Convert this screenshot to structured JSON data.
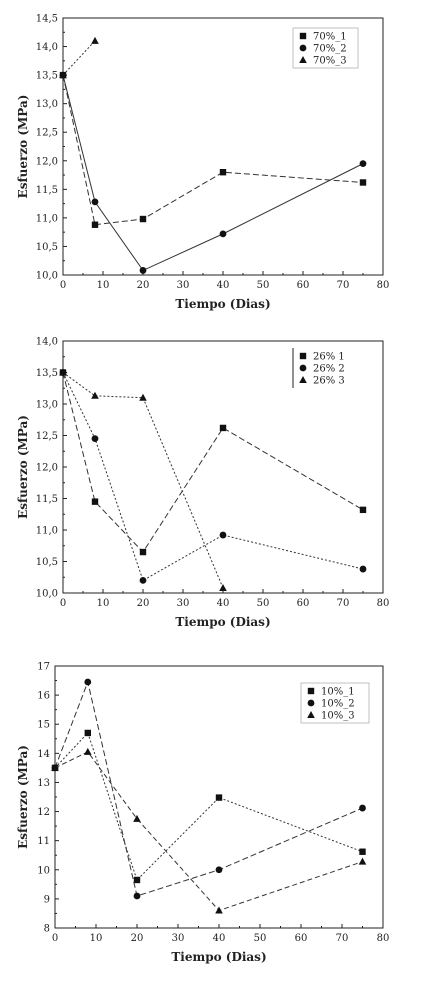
{
  "chart_data": [
    {
      "type": "line",
      "xlabel": "Tiempo (Dias)",
      "ylabel": "Esfuerzo (MPa)",
      "xlim": [
        0,
        80
      ],
      "ylim": [
        10.0,
        14.5
      ],
      "xticks": [
        "0",
        "10",
        "20",
        "30",
        "40",
        "50",
        "60",
        "70",
        "80"
      ],
      "yticks": [
        "10,0",
        "10,5",
        "11,0",
        "11,5",
        "12,0",
        "12,5",
        "13,0",
        "13,5",
        "14,0",
        "14,5"
      ],
      "legend_position": "top-right",
      "series": [
        {
          "name": "70%_1",
          "marker": "square",
          "dash": "6,3",
          "x": [
            0,
            8,
            20,
            40,
            75
          ],
          "y": [
            13.5,
            10.88,
            10.98,
            11.8,
            11.62
          ]
        },
        {
          "name": "70%_2",
          "marker": "circle",
          "dash": "",
          "x": [
            0,
            8,
            20,
            40,
            75
          ],
          "y": [
            13.5,
            11.28,
            10.08,
            10.72,
            11.95
          ]
        },
        {
          "name": "70%_3",
          "marker": "triangle",
          "dash": "2,2",
          "x": [
            0,
            8
          ],
          "y": [
            13.5,
            14.1
          ]
        }
      ]
    },
    {
      "type": "line",
      "xlabel": "Tiempo (Dias)",
      "ylabel": "Esfuerzo (MPa)",
      "xlim": [
        0,
        80
      ],
      "ylim": [
        10.0,
        14.0
      ],
      "xticks": [
        "0",
        "10",
        "20",
        "30",
        "40",
        "50",
        "60",
        "70",
        "80"
      ],
      "yticks": [
        "10,0",
        "10,5",
        "11,0",
        "11,5",
        "12,0",
        "12,5",
        "13,0",
        "13,5",
        "14,0"
      ],
      "legend_position": "top-right",
      "series": [
        {
          "name": "26% 1",
          "marker": "square",
          "dash": "6,3",
          "x": [
            0,
            8,
            20,
            40,
            75
          ],
          "y": [
            13.5,
            11.45,
            10.65,
            12.62,
            11.32
          ]
        },
        {
          "name": "26% 2",
          "marker": "circle",
          "dash": "2,2",
          "x": [
            0,
            8,
            20,
            40,
            75
          ],
          "y": [
            13.5,
            12.45,
            10.2,
            10.92,
            10.38
          ]
        },
        {
          "name": "26% 3",
          "marker": "triangle",
          "dash": "2,2",
          "x": [
            0,
            8,
            20,
            40
          ],
          "y": [
            13.5,
            13.13,
            13.1,
            10.08
          ]
        }
      ]
    },
    {
      "type": "line",
      "xlabel": "Tiempo (Dias)",
      "ylabel": "Esfuerzo (MPa)",
      "xlim": [
        0,
        80
      ],
      "ylim": [
        8,
        17
      ],
      "xticks": [
        "0",
        "10",
        "20",
        "30",
        "40",
        "50",
        "60",
        "70",
        "80"
      ],
      "yticks": [
        "8",
        "9",
        "10",
        "11",
        "12",
        "13",
        "14",
        "15",
        "16",
        "17"
      ],
      "legend_position": "top-right",
      "series": [
        {
          "name": "10%_1",
          "marker": "square",
          "dash": "2,2",
          "x": [
            0,
            8,
            20,
            40,
            75
          ],
          "y": [
            13.5,
            14.7,
            9.65,
            12.48,
            10.62
          ]
        },
        {
          "name": "10%_2",
          "marker": "circle",
          "dash": "6,3",
          "x": [
            0,
            8,
            20,
            40,
            75
          ],
          "y": [
            13.5,
            16.45,
            9.1,
            10.0,
            12.12
          ]
        },
        {
          "name": "10%_3",
          "marker": "triangle",
          "dash": "5,3",
          "x": [
            0,
            8,
            20,
            40,
            75
          ],
          "y": [
            13.5,
            14.05,
            11.75,
            8.6,
            10.28
          ]
        }
      ]
    }
  ]
}
